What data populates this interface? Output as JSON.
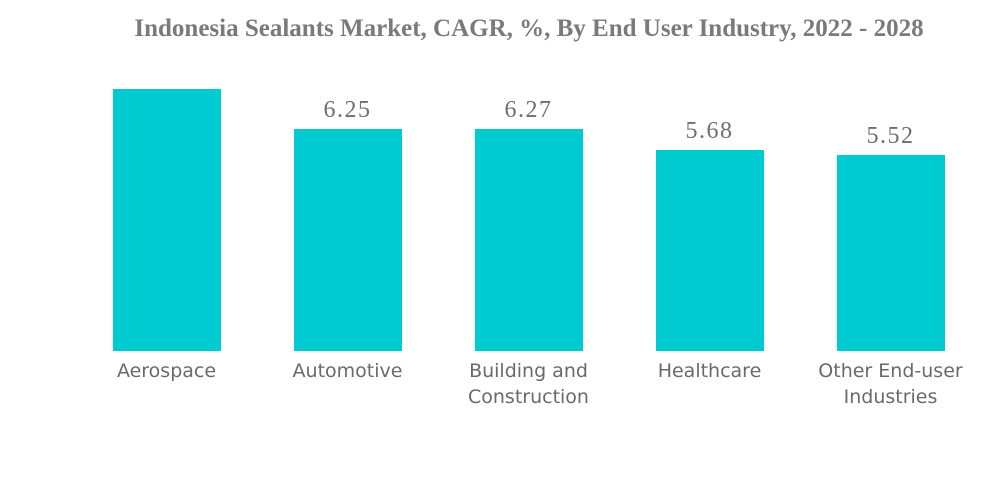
{
  "chart_data": {
    "type": "bar",
    "title": "Indonesia Sealants Market, CAGR, %, By End User Industry, 2022 - 2028",
    "categories": [
      "Aerospace",
      "Automotive",
      "Building and Construction",
      "Healthcare",
      "Other End-user Industries"
    ],
    "values": [
      7.39,
      6.25,
      6.27,
      5.68,
      5.52
    ],
    "ylim": [
      0,
      7.39
    ],
    "gridlines": false,
    "axes_shown": false,
    "legend": "none",
    "background_color": "#FFFFFF",
    "bar_color": "#00CBD1",
    "title_color": "#7A7A7A",
    "category_label_color": "#6A6A6A",
    "points": [
      {
        "label": "Aerospace",
        "value": 7.39,
        "value_label": "7.39",
        "value_label_position": "inside",
        "value_label_color": "#8C6F73"
      },
      {
        "label": "Automotive",
        "value": 6.25,
        "value_label": "6.25",
        "value_label_position": "above",
        "value_label_color": "#6E6E6E"
      },
      {
        "label": "Building and Construction",
        "value": 6.27,
        "value_label": "6.27",
        "value_label_position": "above",
        "value_label_color": "#6E6E6E"
      },
      {
        "label": "Healthcare",
        "value": 5.68,
        "value_label": "5.68",
        "value_label_position": "above",
        "value_label_color": "#6E6E6E"
      },
      {
        "label": "Other End-user Industries",
        "value": 5.52,
        "value_label": "5.52",
        "value_label_position": "above",
        "value_label_color": "#6E6E6E"
      }
    ]
  }
}
